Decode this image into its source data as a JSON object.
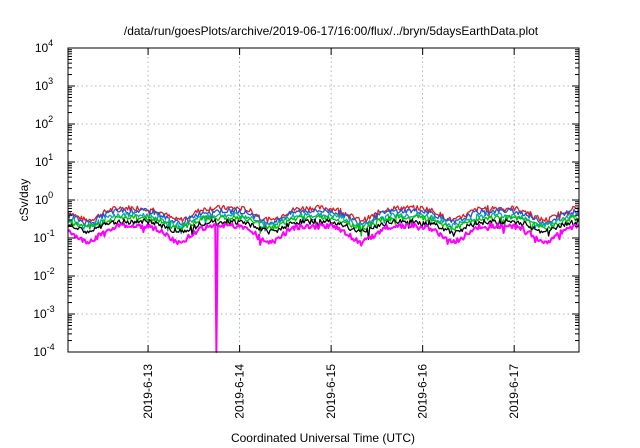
{
  "chart_data": {
    "type": "line",
    "title": "/data/run/goesPlots/archive/2019-06-17/16:00/flux/../bryn/5daysEarthData.plot",
    "xlabel": "Coordinated Universal Time (UTC)",
    "ylabel": "cSv/day",
    "y_scale": "log",
    "ylim": [
      0.0001,
      10000
    ],
    "y_ticks": [
      {
        "base": "10",
        "exp": "-4"
      },
      {
        "base": "10",
        "exp": "-3"
      },
      {
        "base": "10",
        "exp": "-2"
      },
      {
        "base": "10",
        "exp": "-1"
      },
      {
        "base": "10",
        "exp": "0"
      },
      {
        "base": "10",
        "exp": "1"
      },
      {
        "base": "10",
        "exp": "2"
      },
      {
        "base": "10",
        "exp": "3"
      },
      {
        "base": "10",
        "exp": "4"
      }
    ],
    "xlim": [
      "2019-06-12 03:00",
      "2019-06-17 17:00"
    ],
    "x_ticks": [
      "2019-6-13",
      "2019-6-14",
      "2019-6-15",
      "2019-6-16",
      "2019-6-17"
    ],
    "grid": true,
    "legend": "none",
    "series": [
      {
        "color": "#e41a1c",
        "baseline": 0.62,
        "dip_to": 0.3
      },
      {
        "color": "#2255cc",
        "baseline": 0.52,
        "dip_to": 0.26
      },
      {
        "color": "#00aaaa",
        "baseline": 0.4,
        "dip_to": 0.22
      },
      {
        "color": "#00c000",
        "baseline": 0.34,
        "dip_to": 0.19
      },
      {
        "color": "#000000",
        "baseline": 0.27,
        "dip_to": 0.15
      },
      {
        "color": "#ff00ff",
        "baseline": 0.21,
        "dip_to": 0.08
      }
    ],
    "orbital_dips": [
      "2019-06-12 08:00",
      "2019-06-13 08:00",
      "2019-06-14 08:00",
      "2019-06-15 08:00",
      "2019-06-16 08:00",
      "2019-06-17 08:00"
    ],
    "spike": {
      "x": "2019-06-13 18:00",
      "series_color": "#ff00ff",
      "min_value": 0.0001
    }
  }
}
